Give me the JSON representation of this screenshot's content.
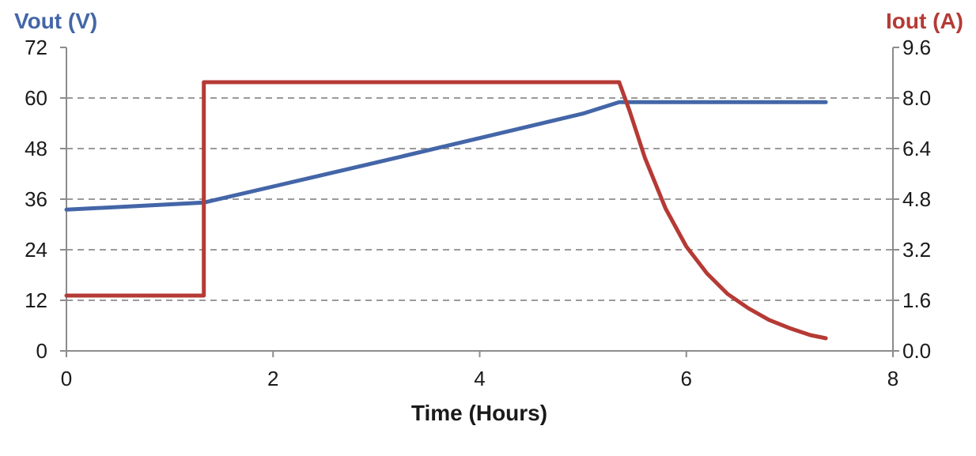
{
  "chart_data": {
    "type": "line",
    "left_axis_title": "Vout (V)",
    "right_axis_title": "Iout (A)",
    "xlabel": "Time (Hours)",
    "xlim": [
      0,
      8
    ],
    "ylim_left": [
      0,
      72
    ],
    "ylim_right": [
      0,
      9.6
    ],
    "x_ticks": [
      "0",
      "2",
      "4",
      "6",
      "8"
    ],
    "y_ticks_left": [
      "0",
      "12",
      "24",
      "36",
      "48",
      "60",
      "72"
    ],
    "y_ticks_right": [
      "0.0",
      "1.6",
      "3.2",
      "4.8",
      "6.4",
      "8.0",
      "9.6"
    ],
    "grid": "horizontal dashed",
    "series": [
      {
        "axis": "left",
        "color": "#4466a8",
        "x": [
          0,
          1.33,
          2.0,
          3.0,
          4.0,
          5.0,
          5.35,
          7.35
        ],
        "y": [
          33.5,
          35.2,
          39.0,
          44.7,
          50.5,
          56.3,
          59.0,
          59.0
        ]
      },
      {
        "axis": "right",
        "color": "#b53a35",
        "x": [
          0,
          1.33,
          1.33,
          5.35,
          5.45,
          5.6,
          5.8,
          6.0,
          6.2,
          6.4,
          6.6,
          6.8,
          7.0,
          7.2,
          7.35
        ],
        "y": [
          1.75,
          1.75,
          8.5,
          8.5,
          7.6,
          6.1,
          4.5,
          3.3,
          2.45,
          1.8,
          1.35,
          0.98,
          0.72,
          0.5,
          0.4
        ]
      }
    ]
  }
}
